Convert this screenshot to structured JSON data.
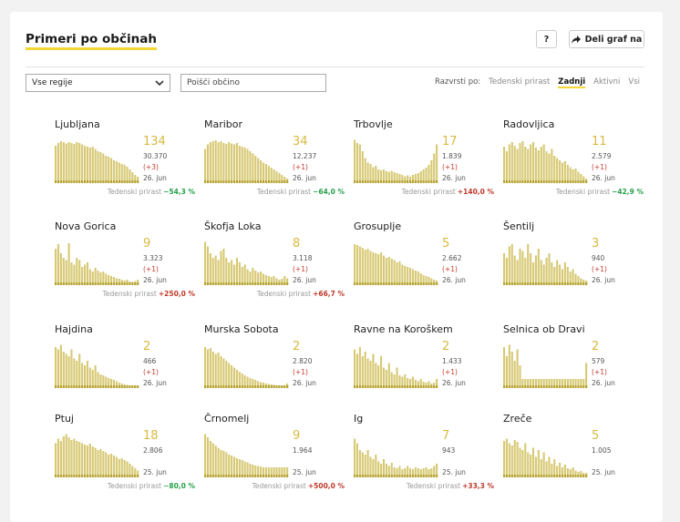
{
  "header": {
    "title": "Primeri po občinah",
    "help_label": "?",
    "share_label": "Deli graf na"
  },
  "filters": {
    "region_select": "Vse regije",
    "search_placeholder": "Poišči občino",
    "sort_label": "Razvrsti po:",
    "sort_options": [
      "Tedenski prirast",
      "Zadnji",
      "Aktivni",
      "Vsi"
    ],
    "sort_active": "Zadnji"
  },
  "growth_label": "Tedenski prirast",
  "colors": {
    "bar": "#d7c974",
    "bar_recent": "#b5a230",
    "accent": "#f2d635",
    "increase": "#c0392b",
    "decrease": "#27a04a"
  },
  "municipalities": [
    {
      "name": "Ljubljana",
      "last": "134",
      "total": "30.370",
      "delta": "(+3)",
      "date": "26. jun",
      "growth": "−54,3 %",
      "growth_dir": "neg",
      "bars": [
        0.82,
        0.88,
        0.92,
        0.9,
        0.87,
        0.9,
        0.88,
        0.86,
        0.9,
        0.88,
        0.85,
        0.82,
        0.8,
        0.78,
        0.8,
        0.75,
        0.7,
        0.68,
        0.65,
        0.6,
        0.58,
        0.55,
        0.5,
        0.48,
        0.45,
        0.42,
        0.4,
        0.36,
        0.3,
        0.24,
        0.18,
        0.14
      ]
    },
    {
      "name": "Maribor",
      "last": "34",
      "total": "12.237",
      "delta": "(+1)",
      "date": "26. jun",
      "growth": "−64,0 %",
      "growth_dir": "neg",
      "bars": [
        0.75,
        0.85,
        0.9,
        0.92,
        0.94,
        0.9,
        0.92,
        0.88,
        0.86,
        0.9,
        0.87,
        0.85,
        0.88,
        0.82,
        0.8,
        0.78,
        0.75,
        0.7,
        0.65,
        0.6,
        0.55,
        0.5,
        0.45,
        0.42,
        0.38,
        0.34,
        0.3,
        0.26,
        0.22,
        0.18,
        0.14,
        0.1
      ]
    },
    {
      "name": "Trbovlje",
      "last": "17",
      "total": "1.839",
      "delta": "(+1)",
      "date": "26. jun",
      "growth": "+140,0 %",
      "growth_dir": "pos",
      "bars": [
        0.95,
        0.88,
        0.85,
        0.7,
        0.55,
        0.45,
        0.42,
        0.35,
        0.38,
        0.3,
        0.28,
        0.3,
        0.26,
        0.25,
        0.27,
        0.24,
        0.22,
        0.2,
        0.18,
        0.15,
        0.17,
        0.14,
        0.18,
        0.2,
        0.22,
        0.26,
        0.3,
        0.34,
        0.4,
        0.5,
        0.65,
        0.85
      ]
    },
    {
      "name": "Radovljica",
      "last": "11",
      "total": "2.579",
      "delta": "(+1)",
      "date": "26. jun",
      "growth": "−42,9 %",
      "growth_dir": "neg",
      "bars": [
        0.8,
        0.7,
        0.85,
        0.9,
        0.82,
        0.75,
        0.88,
        0.92,
        0.8,
        0.75,
        0.85,
        0.9,
        0.78,
        0.72,
        0.8,
        0.85,
        0.7,
        0.65,
        0.75,
        0.6,
        0.55,
        0.5,
        0.45,
        0.48,
        0.4,
        0.35,
        0.3,
        0.32,
        0.25,
        0.2,
        0.15,
        0.1
      ]
    },
    {
      "name": "Nova Gorica",
      "last": "9",
      "total": "3.323",
      "delta": "(+1)",
      "date": "26. jun",
      "growth": "+250,0 %",
      "growth_dir": "pos",
      "bars": [
        0.8,
        0.9,
        0.7,
        0.6,
        0.55,
        0.92,
        0.5,
        0.45,
        0.6,
        0.55,
        0.4,
        0.45,
        0.5,
        0.35,
        0.3,
        0.38,
        0.32,
        0.28,
        0.3,
        0.25,
        0.22,
        0.2,
        0.18,
        0.15,
        0.14,
        0.12,
        0.1,
        0.12,
        0.08,
        0.07,
        0.09,
        0.12
      ]
    },
    {
      "name": "Škofja Loka",
      "last": "8",
      "total": "3.118",
      "delta": "(+1)",
      "date": "26. jun",
      "growth": "+66,7 %",
      "growth_dir": "pos",
      "bars": [
        0.95,
        0.85,
        0.7,
        0.6,
        0.65,
        0.55,
        0.75,
        0.8,
        0.6,
        0.5,
        0.55,
        0.45,
        0.6,
        0.5,
        0.4,
        0.45,
        0.35,
        0.3,
        0.38,
        0.32,
        0.28,
        0.3,
        0.25,
        0.22,
        0.2,
        0.18,
        0.2,
        0.15,
        0.12,
        0.14,
        0.2,
        0.15
      ]
    },
    {
      "name": "Grosuplje",
      "last": "5",
      "total": "2.662",
      "delta": "(+1)",
      "date": "26. jun",
      "growth": "",
      "growth_dir": "",
      "bars": [
        0.9,
        0.88,
        0.85,
        0.82,
        0.78,
        0.8,
        0.75,
        0.72,
        0.7,
        0.68,
        0.72,
        0.65,
        0.6,
        0.62,
        0.58,
        0.55,
        0.5,
        0.52,
        0.45,
        0.42,
        0.4,
        0.38,
        0.35,
        0.32,
        0.3,
        0.26,
        0.22,
        0.2,
        0.18,
        0.15,
        0.12,
        0.1
      ]
    },
    {
      "name": "Šentilj",
      "last": "3",
      "total": "940",
      "delta": "(+1)",
      "date": "26. jun",
      "growth": "",
      "growth_dir": "",
      "bars": [
        0.7,
        0.6,
        0.85,
        0.9,
        0.65,
        0.55,
        0.8,
        0.75,
        0.6,
        0.9,
        0.7,
        0.5,
        0.65,
        0.8,
        0.55,
        0.45,
        0.6,
        0.7,
        0.5,
        0.4,
        0.55,
        0.45,
        0.35,
        0.5,
        0.4,
        0.3,
        0.35,
        0.25,
        0.2,
        0.15,
        0.12,
        0.1
      ]
    },
    {
      "name": "Hajdina",
      "last": "2",
      "total": "466",
      "delta": "(+1)",
      "date": "26. jun",
      "growth": "",
      "growth_dir": "",
      "bars": [
        0.9,
        0.85,
        0.95,
        0.8,
        0.75,
        0.7,
        0.85,
        0.65,
        0.6,
        0.75,
        0.55,
        0.5,
        0.6,
        0.45,
        0.4,
        0.5,
        0.35,
        0.3,
        0.28,
        0.25,
        0.22,
        0.2,
        0.18,
        0.15,
        0.12,
        0.1,
        0.08,
        0.07,
        0.06,
        0.05,
        0.05,
        0.06
      ]
    },
    {
      "name": "Murska Sobota",
      "last": "2",
      "total": "2.820",
      "delta": "(+1)",
      "date": "26. jun",
      "growth": "",
      "growth_dir": "",
      "bars": [
        0.9,
        0.85,
        0.88,
        0.8,
        0.75,
        0.78,
        0.7,
        0.65,
        0.6,
        0.55,
        0.5,
        0.45,
        0.4,
        0.36,
        0.32,
        0.28,
        0.25,
        0.22,
        0.2,
        0.18,
        0.15,
        0.13,
        0.12,
        0.1,
        0.09,
        0.08,
        0.07,
        0.06,
        0.06,
        0.05,
        0.05,
        0.1
      ]
    },
    {
      "name": "Ravne na Koroškem",
      "last": "2",
      "total": "1.433",
      "delta": "(+1)",
      "date": "26. jun",
      "growth": "",
      "growth_dir": "",
      "bars": [
        0.85,
        0.75,
        0.9,
        0.7,
        0.8,
        0.65,
        0.6,
        0.75,
        0.55,
        0.5,
        0.7,
        0.45,
        0.4,
        0.55,
        0.35,
        0.3,
        0.45,
        0.28,
        0.25,
        0.3,
        0.22,
        0.2,
        0.25,
        0.18,
        0.15,
        0.2,
        0.14,
        0.12,
        0.15,
        0.1,
        0.12,
        0.2
      ]
    },
    {
      "name": "Selnica ob Dravi",
      "last": "2",
      "total": "579",
      "delta": "(+1)",
      "date": "26. jun",
      "growth": "",
      "growth_dir": "",
      "bars": [
        0.9,
        0.7,
        0.95,
        0.8,
        0.6,
        0.85,
        0.5,
        0.2,
        0.2,
        0.2,
        0.2,
        0.2,
        0.2,
        0.2,
        0.2,
        0.2,
        0.2,
        0.2,
        0.2,
        0.2,
        0.2,
        0.2,
        0.2,
        0.2,
        0.2,
        0.2,
        0.2,
        0.2,
        0.2,
        0.2,
        0.2,
        0.55
      ]
    },
    {
      "name": "Ptuj",
      "last": "18",
      "total": "2.806",
      "delta": "",
      "date": "25. jun",
      "growth": "−80,0 %",
      "growth_dir": "neg",
      "bars": [
        0.75,
        0.85,
        0.8,
        0.9,
        0.95,
        0.88,
        0.82,
        0.85,
        0.8,
        0.78,
        0.75,
        0.72,
        0.7,
        0.74,
        0.68,
        0.65,
        0.6,
        0.62,
        0.58,
        0.55,
        0.5,
        0.52,
        0.48,
        0.45,
        0.4,
        0.42,
        0.38,
        0.35,
        0.3,
        0.25,
        0.2,
        0.15
      ]
    },
    {
      "name": "Črnomelj",
      "last": "9",
      "total": "1.964",
      "delta": "",
      "date": "25. jun",
      "growth": "+500,0 %",
      "growth_dir": "pos",
      "bars": [
        0.95,
        0.88,
        0.8,
        0.75,
        0.7,
        0.65,
        0.6,
        0.58,
        0.55,
        0.5,
        0.48,
        0.45,
        0.42,
        0.4,
        0.38,
        0.35,
        0.33,
        0.3,
        0.28,
        0.26,
        0.25,
        0.24,
        0.22,
        0.22,
        0.22,
        0.22,
        0.22,
        0.22,
        0.22,
        0.22,
        0.22,
        0.22
      ]
    },
    {
      "name": "Ig",
      "last": "7",
      "total": "943",
      "delta": "",
      "date": "25. jun",
      "growth": "+33,3 %",
      "growth_dir": "pos",
      "bars": [
        0.85,
        0.75,
        0.6,
        0.55,
        0.5,
        0.6,
        0.45,
        0.4,
        0.5,
        0.35,
        0.3,
        0.4,
        0.3,
        0.25,
        0.32,
        0.22,
        0.2,
        0.25,
        0.18,
        0.2,
        0.25,
        0.2,
        0.18,
        0.22,
        0.2,
        0.18,
        0.2,
        0.22,
        0.18,
        0.2,
        0.25,
        0.3
      ]
    },
    {
      "name": "Zreče",
      "last": "5",
      "total": "1.005",
      "delta": "",
      "date": "25. jun",
      "growth": "",
      "growth_dir": "",
      "bars": [
        0.8,
        0.85,
        0.75,
        0.7,
        0.82,
        0.78,
        0.65,
        0.6,
        0.75,
        0.55,
        0.5,
        0.65,
        0.45,
        0.6,
        0.4,
        0.55,
        0.35,
        0.45,
        0.3,
        0.4,
        0.25,
        0.32,
        0.22,
        0.28,
        0.2,
        0.18,
        0.22,
        0.15,
        0.12,
        0.14,
        0.1,
        0.1
      ]
    }
  ]
}
